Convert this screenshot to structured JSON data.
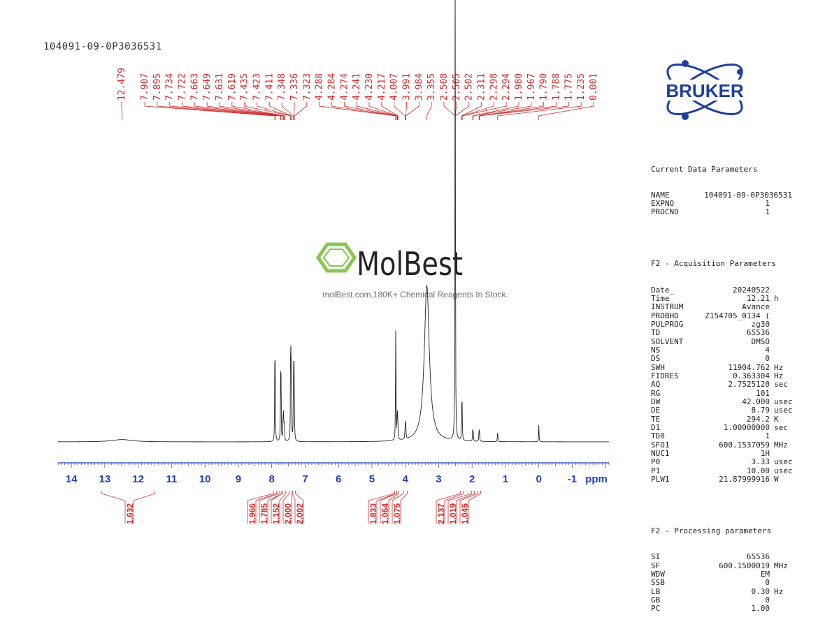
{
  "sample_id": "104091-09-0P3036531",
  "brand": {
    "logo_text": "BRUKER",
    "logo_color": "#1f3f9e",
    "watermark_name": "MolBest",
    "watermark_tagline": "molBest.com,180K+ Chemical Reagents In Stock.",
    "watermark_color": "#7dc242"
  },
  "colors": {
    "peak_labels": "#d22b2b",
    "axis": "#1f3fbf",
    "trace": "#222222",
    "integrals": "#d22b2b"
  },
  "chart_data": {
    "type": "line",
    "title": "",
    "xlabel": "ppm",
    "xlim": [
      14.4,
      -2.1
    ],
    "axis_reversed": true,
    "x_ticks": [
      "14",
      "13",
      "12",
      "11",
      "10",
      "9",
      "8",
      "7",
      "6",
      "5",
      "4",
      "3",
      "2",
      "1",
      "0",
      "-1"
    ],
    "peak_labels": [
      "12.479",
      "7.907",
      "7.895",
      "7.734",
      "7.722",
      "7.663",
      "7.649",
      "7.631",
      "7.619",
      "7.435",
      "7.423",
      "7.411",
      "7.348",
      "7.336",
      "7.323",
      "4.288",
      "4.284",
      "4.274",
      "4.241",
      "4.230",
      "4.217",
      "4.007",
      "3.991",
      "3.984",
      "3.355",
      "2.508",
      "2.505",
      "2.502",
      "2.311",
      "2.298",
      "2.294",
      "1.980",
      "1.967",
      "1.790",
      "1.788",
      "1.775",
      "1.235",
      "0.001"
    ],
    "peaks": [
      {
        "ppm": 12.479,
        "height": 0.01,
        "width": 0.35
      },
      {
        "ppm": 7.907,
        "height": 0.31
      },
      {
        "ppm": 7.895,
        "height": 0.3
      },
      {
        "ppm": 7.734,
        "height": 0.26
      },
      {
        "ppm": 7.722,
        "height": 0.25
      },
      {
        "ppm": 7.663,
        "height": 0.1
      },
      {
        "ppm": 7.649,
        "height": 0.11
      },
      {
        "ppm": 7.631,
        "height": 0.07
      },
      {
        "ppm": 7.619,
        "height": 0.06
      },
      {
        "ppm": 7.435,
        "height": 0.33
      },
      {
        "ppm": 7.423,
        "height": 0.35
      },
      {
        "ppm": 7.411,
        "height": 0.2
      },
      {
        "ppm": 7.348,
        "height": 0.29
      },
      {
        "ppm": 7.336,
        "height": 0.3
      },
      {
        "ppm": 7.323,
        "height": 0.15
      },
      {
        "ppm": 4.288,
        "height": 0.29
      },
      {
        "ppm": 4.284,
        "height": 0.2
      },
      {
        "ppm": 4.274,
        "height": 0.08
      },
      {
        "ppm": 4.241,
        "height": 0.1
      },
      {
        "ppm": 4.23,
        "height": 0.09
      },
      {
        "ppm": 4.217,
        "height": 0.05
      },
      {
        "ppm": 4.007,
        "height": 0.05
      },
      {
        "ppm": 3.991,
        "height": 0.06
      },
      {
        "ppm": 3.984,
        "height": 0.04
      },
      {
        "ppm": 3.355,
        "height": 0.67,
        "width": 0.09
      },
      {
        "ppm": 2.508,
        "height": 0.85
      },
      {
        "ppm": 2.505,
        "height": 0.9
      },
      {
        "ppm": 2.502,
        "height": 0.6
      },
      {
        "ppm": 2.311,
        "height": 0.15
      },
      {
        "ppm": 2.298,
        "height": 0.09
      },
      {
        "ppm": 2.294,
        "height": 0.06
      },
      {
        "ppm": 1.98,
        "height": 0.05
      },
      {
        "ppm": 1.967,
        "height": 0.045
      },
      {
        "ppm": 1.79,
        "height": 0.035
      },
      {
        "ppm": 1.788,
        "height": 0.03
      },
      {
        "ppm": 1.775,
        "height": 0.025
      },
      {
        "ppm": 1.235,
        "height": 0.055
      },
      {
        "ppm": 0.001,
        "height": 0.09
      }
    ],
    "integrals": [
      {
        "value": "1.632",
        "from": 13.1,
        "to": 11.5
      },
      {
        "value": "1.966",
        "from": 7.95,
        "to": 7.85
      },
      {
        "value": "1.785",
        "from": 7.78,
        "to": 7.68
      },
      {
        "value": "1.152",
        "from": 7.7,
        "to": 7.58
      },
      {
        "value": "2.000",
        "from": 7.47,
        "to": 7.39
      },
      {
        "value": "2.002",
        "from": 7.38,
        "to": 7.29
      },
      {
        "value": "1.833",
        "from": 4.32,
        "to": 4.26
      },
      {
        "value": "1.064",
        "from": 4.26,
        "to": 4.19
      },
      {
        "value": "1.075",
        "from": 4.05,
        "to": 3.94
      },
      {
        "value": "2.137",
        "from": 2.35,
        "to": 2.26
      },
      {
        "value": "1.019",
        "from": 2.02,
        "to": 1.93
      },
      {
        "value": "1.045",
        "from": 1.83,
        "to": 1.74
      }
    ]
  },
  "parameters": {
    "current_title": "Current Data Parameters",
    "current": [
      {
        "name": "NAME",
        "value": "104091-09-0P3036531",
        "unit": ""
      },
      {
        "name": "EXPNO",
        "value": "1",
        "unit": ""
      },
      {
        "name": "PROCNO",
        "value": "1",
        "unit": ""
      }
    ],
    "acq_title": "F2 - Acquisition Parameters",
    "acquisition": [
      {
        "name": "Date_",
        "value": "20240522",
        "unit": ""
      },
      {
        "name": "Time",
        "value": "12.21",
        "unit": "h"
      },
      {
        "name": "INSTRUM",
        "value": "Avance",
        "unit": ""
      },
      {
        "name": "PROBHD",
        "value": "Z154705_0134 (",
        "unit": ""
      },
      {
        "name": "PULPROG",
        "value": "zg30",
        "unit": ""
      },
      {
        "name": "TD",
        "value": "65536",
        "unit": ""
      },
      {
        "name": "SOLVENT",
        "value": "DMSO",
        "unit": ""
      },
      {
        "name": "NS",
        "value": "4",
        "unit": ""
      },
      {
        "name": "DS",
        "value": "0",
        "unit": ""
      },
      {
        "name": "SWH",
        "value": "11904.762",
        "unit": "Hz"
      },
      {
        "name": "FIDRES",
        "value": "0.363304",
        "unit": "Hz"
      },
      {
        "name": "AQ",
        "value": "2.7525120",
        "unit": "sec"
      },
      {
        "name": "RG",
        "value": "101",
        "unit": ""
      },
      {
        "name": "DW",
        "value": "42.000",
        "unit": "usec"
      },
      {
        "name": "DE",
        "value": "8.79",
        "unit": "usec"
      },
      {
        "name": "TE",
        "value": "294.2",
        "unit": "K"
      },
      {
        "name": "D1",
        "value": "1.00000000",
        "unit": "sec"
      },
      {
        "name": "TD0",
        "value": "1",
        "unit": ""
      },
      {
        "name": "SFO1",
        "value": "600.1537059",
        "unit": "MHz"
      },
      {
        "name": "NUC1",
        "value": "1H",
        "unit": ""
      },
      {
        "name": "P0",
        "value": "3.33",
        "unit": "usec"
      },
      {
        "name": "P1",
        "value": "10.00",
        "unit": "usec"
      },
      {
        "name": "PLW1",
        "value": "21.87999916",
        "unit": "W"
      }
    ],
    "proc_title": "F2 - Processing parameters",
    "processing": [
      {
        "name": "SI",
        "value": "65536",
        "unit": ""
      },
      {
        "name": "SF",
        "value": "600.1500019",
        "unit": "MHz"
      },
      {
        "name": "WDW",
        "value": "EM",
        "unit": ""
      },
      {
        "name": "SSB",
        "value": "0",
        "unit": ""
      },
      {
        "name": "LB",
        "value": "0.30",
        "unit": "Hz"
      },
      {
        "name": "GB",
        "value": "0",
        "unit": ""
      },
      {
        "name": "PC",
        "value": "1.00",
        "unit": ""
      }
    ]
  }
}
